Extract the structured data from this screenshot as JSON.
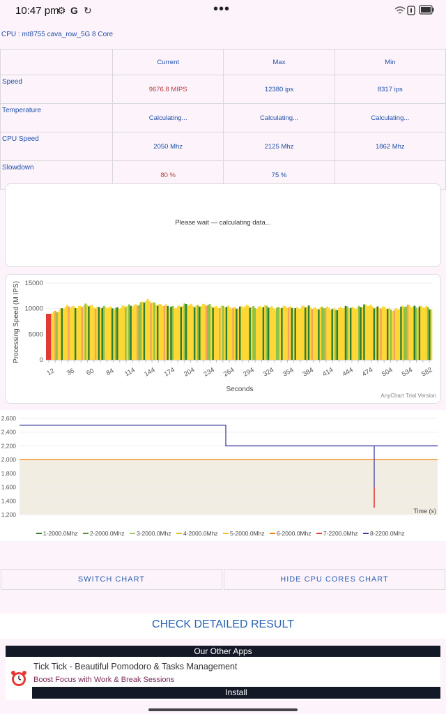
{
  "status_bar": {
    "time": "10:47 pm",
    "g_letter": "G"
  },
  "cpu_title": "CPU : mt8755 cava_row_5G 8 Core",
  "metrics": {
    "headers": [
      "Current",
      "Max",
      "Min"
    ],
    "rows": [
      {
        "label": "Speed",
        "values": [
          "9676.8 MIPS",
          "12380 ips",
          "8317 ips"
        ]
      },
      {
        "label": "Temperature",
        "values": [
          "Calculating...",
          "Calculating...",
          "Calculating..."
        ]
      },
      {
        "label": "CPU Speed",
        "values": [
          "2050 Mhz",
          "2125 Mhz",
          "1862 Mhz"
        ]
      },
      {
        "label": "Slowdown",
        "values": [
          "80 %",
          "75 %",
          ""
        ]
      }
    ]
  },
  "wait_message": "Please wait — calculating data...",
  "speed_chart": {
    "ylabel": "Processing Speed (M IPS)",
    "xlabel": "Seconds",
    "ylim": [
      0,
      15000
    ],
    "yticks": [
      "15000",
      "10000",
      "5000",
      "0"
    ],
    "xticks": [
      "12",
      "36",
      "60",
      "84",
      "114",
      "144",
      "174",
      "204",
      "234",
      "264",
      "294",
      "324",
      "354",
      "384",
      "414",
      "444",
      "474",
      "504",
      "534",
      "582"
    ],
    "watermark": "AnyChart Trial Version",
    "colors": {
      "low": "#e53935",
      "mid": "#fdd835",
      "high": "#2e7d32"
    }
  },
  "chart_data": [
    {
      "type": "bar",
      "title": "",
      "xlabel": "Seconds",
      "ylabel": "Processing Speed (M IPS)",
      "ylim": [
        0,
        15000
      ],
      "x": [
        12,
        36,
        60,
        84,
        114,
        144,
        174,
        204,
        234,
        264,
        294,
        324,
        354,
        384,
        414,
        444,
        474,
        504,
        534,
        582
      ],
      "values": [
        9000,
        10300,
        10600,
        10100,
        10400,
        11500,
        10300,
        10700,
        10600,
        10200,
        10400,
        10300,
        10200,
        10300,
        10000,
        10200,
        10600,
        9800,
        10600,
        10000
      ],
      "legend": false
    },
    {
      "type": "line",
      "title": "",
      "xlabel": "Time (s)",
      "ylabel": "",
      "ylim": [
        1200,
        2600
      ],
      "yticks": [
        1200,
        1400,
        1600,
        1800,
        2000,
        2200,
        2400,
        2600
      ],
      "x_fraction_note": "time axis has no tick labels",
      "series": [
        {
          "name": "1-2000.0Mhz",
          "color": "#2e7d32",
          "values": [
            2000,
            2000,
            2000
          ]
        },
        {
          "name": "2-2000.0Mhz",
          "color": "#558b2f",
          "values": [
            2000,
            2000,
            2000
          ]
        },
        {
          "name": "3-2000.0Mhz",
          "color": "#9ccc65",
          "values": [
            2000,
            2000,
            2000
          ]
        },
        {
          "name": "4-2000.0Mhz",
          "color": "#d4c21a",
          "values": [
            2000,
            2000,
            2000
          ]
        },
        {
          "name": "5-2000.0Mhz",
          "color": "#fbc02d",
          "values": [
            2000,
            2000,
            2000
          ]
        },
        {
          "name": "6-2000.0Mhz",
          "color": "#f57c00",
          "values": [
            2000,
            2000,
            2000
          ]
        },
        {
          "name": "7-2200.0Mhz",
          "color": "#e53935",
          "values": [
            2000,
            2000,
            1300
          ]
        },
        {
          "name": "8-2200.0Mhz",
          "color": "#3f3fa0",
          "values": [
            2500,
            2200,
            1600
          ]
        }
      ]
    }
  ],
  "freq_chart": {
    "yticks": [
      "2,600",
      "2,400",
      "2,200",
      "2,000",
      "1,800",
      "1,600",
      "1,400",
      "1,200"
    ],
    "time_label": "Time (s)"
  },
  "buttons": {
    "switch_chart": "SWITCH CHART",
    "hide_cores": "HIDE CPU CORES CHART"
  },
  "check_result": "CHECK DETAILED RESULT",
  "ad": {
    "header": "Our Other Apps",
    "title": "Tick Tick - Beautiful Pomodoro & Tasks Management",
    "subtitle": "Boost Focus with Work & Break Sessions",
    "install": "Install"
  }
}
